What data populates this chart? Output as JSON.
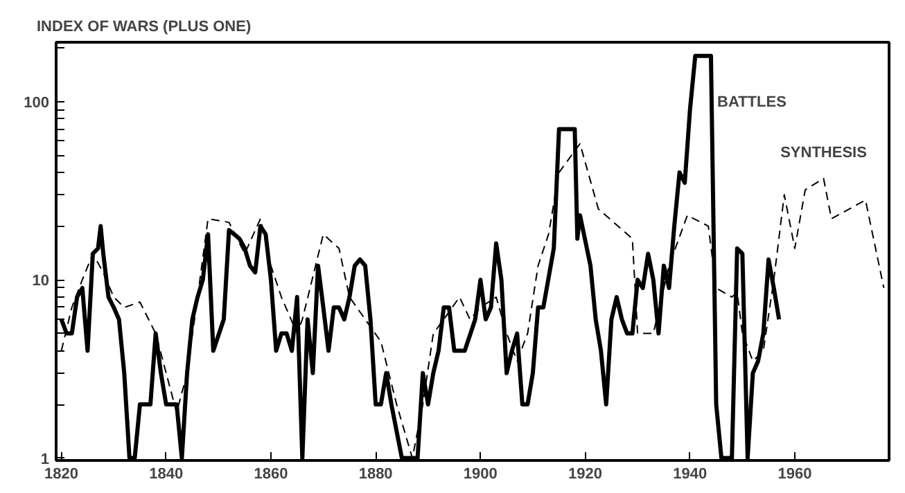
{
  "chart_data": {
    "type": "line",
    "ylabel": "INDEX OF WARS (PLUS ONE)",
    "log": true,
    "grid": false,
    "marker": "none",
    "xlim": [
      1819,
      1978
    ],
    "xticks": [
      1820,
      1840,
      1860,
      1880,
      1900,
      1920,
      1940,
      1960
    ],
    "ylim": [
      0.97,
      215
    ],
    "yticks": [
      1,
      {
        "value": 2,
        "label": null
      },
      {
        "value": 3,
        "label": null
      },
      {
        "value": 4,
        "label": null
      },
      {
        "value": 5,
        "label": null
      },
      {
        "value": 6,
        "label": null
      },
      {
        "value": 7,
        "label": null
      },
      {
        "value": 8,
        "label": null
      },
      {
        "value": 9,
        "label": null
      },
      10,
      {
        "value": 20,
        "label": null
      },
      {
        "value": 30,
        "label": null
      },
      {
        "value": 40,
        "label": null
      },
      {
        "value": 50,
        "label": null
      },
      {
        "value": 60,
        "label": null
      },
      {
        "value": 70,
        "label": null
      },
      {
        "value": 80,
        "label": null
      },
      {
        "value": 90,
        "label": null
      },
      100,
      {
        "value": 200,
        "label": null
      }
    ],
    "series": [
      {
        "name": "BATTLES",
        "color": "#000000",
        "line_style": "solid",
        "x": [
          1820,
          1821,
          1822,
          1823,
          1824,
          1825,
          1826,
          1827,
          1827.5,
          1828,
          1829,
          1830,
          1831,
          1832,
          1833,
          1834,
          1835,
          1837,
          1838,
          1839,
          1840,
          1842,
          1843,
          1844,
          1845,
          1846,
          1847,
          1848,
          1849,
          1851,
          1852,
          1853,
          1854,
          1855,
          1856,
          1857,
          1858,
          1859,
          1860,
          1861,
          1862,
          1863,
          1864,
          1865,
          1866,
          1867,
          1868,
          1869,
          1870,
          1871,
          1872,
          1873,
          1874,
          1875,
          1876,
          1877,
          1878,
          1879,
          1880,
          1881,
          1882,
          1883,
          1885,
          1888,
          1889,
          1890,
          1891,
          1892,
          1893,
          1894,
          1895,
          1897,
          1899,
          1900,
          1901,
          1902,
          1903,
          1904,
          1905,
          1906,
          1907,
          1908,
          1909,
          1910,
          1911,
          1912,
          1914,
          1915,
          1918,
          1918.5,
          1919,
          1921,
          1922,
          1923,
          1924,
          1925,
          1926,
          1927,
          1928,
          1929,
          1930,
          1931,
          1932,
          1933,
          1934,
          1935,
          1936,
          1937,
          1938,
          1939,
          1940,
          1941,
          1944,
          1945,
          1946,
          1948,
          1949,
          1950,
          1951,
          1952,
          1953,
          1954,
          1955,
          1956,
          1957
        ],
        "values": [
          6,
          5,
          5,
          8,
          9,
          4,
          14,
          15,
          20,
          14,
          8,
          7,
          6,
          3,
          1,
          1,
          2,
          2,
          5,
          3,
          2,
          2,
          1,
          3,
          6,
          8,
          10,
          18,
          4,
          6,
          19,
          18,
          17,
          15,
          12,
          11,
          20,
          18,
          10,
          4,
          5,
          5,
          4,
          8,
          1,
          6,
          3,
          12,
          7,
          4,
          7,
          7,
          6,
          8,
          12,
          13,
          12,
          6,
          2,
          2,
          3,
          2,
          1,
          1,
          3,
          2,
          3,
          4,
          7,
          7,
          4,
          4,
          6,
          10,
          6,
          7,
          16,
          10,
          3,
          4,
          5,
          2,
          2,
          3,
          7,
          7,
          15,
          70,
          70,
          17,
          23,
          12,
          6,
          4,
          2,
          6,
          8,
          6,
          5,
          5,
          10,
          9,
          14,
          10,
          5,
          12,
          9,
          20,
          40,
          35,
          90,
          180,
          180,
          2,
          1,
          1,
          15,
          14,
          1,
          3,
          3.5,
          5,
          13,
          9,
          6
        ]
      },
      {
        "name": "SYNTHESIS",
        "color": "#000000",
        "line_style": "dashed",
        "x": [
          1820,
          1822,
          1824,
          1826,
          1828,
          1830,
          1832,
          1835,
          1838,
          1840,
          1842,
          1844,
          1846,
          1848,
          1852,
          1855,
          1858,
          1860,
          1862,
          1865,
          1866,
          1870,
          1873,
          1875,
          1878,
          1881,
          1884,
          1887,
          1889,
          1891,
          1893,
          1896,
          1898,
          1900,
          1903,
          1905,
          1907,
          1909,
          1911,
          1913,
          1915,
          1919,
          1922.5,
          1929,
          1930,
          1933,
          1936,
          1939.5,
          1943.5,
          1945,
          1948,
          1949,
          1950,
          1952,
          1954,
          1956,
          1958,
          1960,
          1962,
          1965.5,
          1967,
          1973.5,
          1977
        ],
        "values": [
          4,
          7,
          10,
          14,
          11,
          8,
          7,
          7.5,
          5,
          3,
          1.8,
          3,
          8,
          22,
          21,
          14,
          22,
          12,
          8,
          5,
          6,
          18,
          15,
          8,
          6,
          4.5,
          2,
          1,
          2,
          5,
          6,
          8,
          6,
          7,
          8,
          5,
          3.5,
          5,
          12,
          18,
          40,
          58,
          25,
          17,
          5,
          5,
          12,
          23,
          20,
          9,
          8,
          8.5,
          5,
          3.5,
          4,
          10,
          30,
          15,
          32,
          37,
          22,
          28,
          9
        ]
      }
    ]
  }
}
